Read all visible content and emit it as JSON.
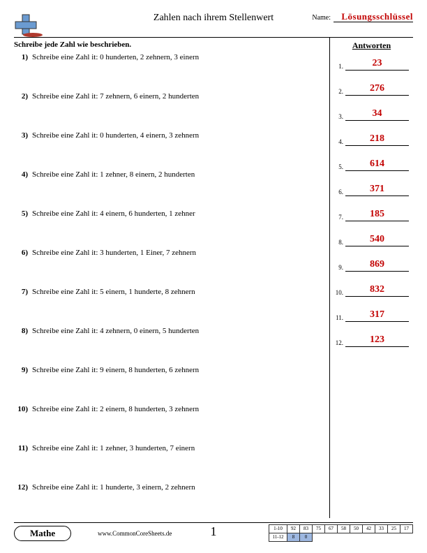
{
  "header": {
    "title": "Zahlen nach ihrem Stellenwert",
    "name_label": "Name:",
    "answer_key": "Lösungsschlüssel"
  },
  "instruction": "Schreibe jede Zahl wie beschrieben.",
  "answers_title": "Antworten",
  "questions": [
    {
      "n": "1)",
      "text": "Schreibe eine Zahl it: 0 hunderten, 2 zehnern, 3 einern"
    },
    {
      "n": "2)",
      "text": "Schreibe eine Zahl it: 7 zehnern, 6 einern, 2 hunderten"
    },
    {
      "n": "3)",
      "text": "Schreibe eine Zahl it: 0 hunderten, 4 einern, 3 zehnern"
    },
    {
      "n": "4)",
      "text": "Schreibe eine Zahl it: 1 zehner, 8 einern, 2 hunderten"
    },
    {
      "n": "5)",
      "text": "Schreibe eine Zahl it: 4 einern, 6 hunderten, 1 zehner"
    },
    {
      "n": "6)",
      "text": "Schreibe eine Zahl it: 3 hunderten, 1 Einer, 7 zehnern"
    },
    {
      "n": "7)",
      "text": "Schreibe eine Zahl it: 5 einern, 1 hunderte, 8 zehnern"
    },
    {
      "n": "8)",
      "text": "Schreibe eine Zahl it: 4 zehnern, 0 einern, 5 hunderten"
    },
    {
      "n": "9)",
      "text": "Schreibe eine Zahl it: 9 einern, 8 hunderten, 6 zehnern"
    },
    {
      "n": "10)",
      "text": "Schreibe eine Zahl it: 2 einern, 8 hunderten, 3 zehnern"
    },
    {
      "n": "11)",
      "text": "Schreibe eine Zahl it: 1 zehner, 3 hunderten, 7 einern"
    },
    {
      "n": "12)",
      "text": "Schreibe eine Zahl it: 1 hunderte, 3 einern, 2 zehnern"
    }
  ],
  "answers": [
    {
      "n": "1.",
      "val": "23"
    },
    {
      "n": "2.",
      "val": "276"
    },
    {
      "n": "3.",
      "val": "34"
    },
    {
      "n": "4.",
      "val": "218"
    },
    {
      "n": "5.",
      "val": "614"
    },
    {
      "n": "6.",
      "val": "371"
    },
    {
      "n": "7.",
      "val": "185"
    },
    {
      "n": "8.",
      "val": "540"
    },
    {
      "n": "9.",
      "val": "869"
    },
    {
      "n": "10.",
      "val": "832"
    },
    {
      "n": "11.",
      "val": "317"
    },
    {
      "n": "12.",
      "val": "123"
    }
  ],
  "footer": {
    "subject": "Mathe",
    "url": "www.CommonCoreSheets.de",
    "page_number": "1",
    "score_rows": [
      {
        "label": "1-10",
        "cells": [
          "92",
          "83",
          "75",
          "67",
          "58",
          "50",
          "42",
          "33",
          "25",
          "17"
        ]
      },
      {
        "label": "11-12",
        "cells": [
          "8",
          "0",
          "",
          "",
          "",
          "",
          "",
          "",
          "",
          ""
        ]
      }
    ]
  },
  "colors": {
    "answer_red": "#c20000",
    "grid_blue": "#9db7e0",
    "logo_blue": "#6b9bd1",
    "logo_red": "#b03a2e"
  }
}
